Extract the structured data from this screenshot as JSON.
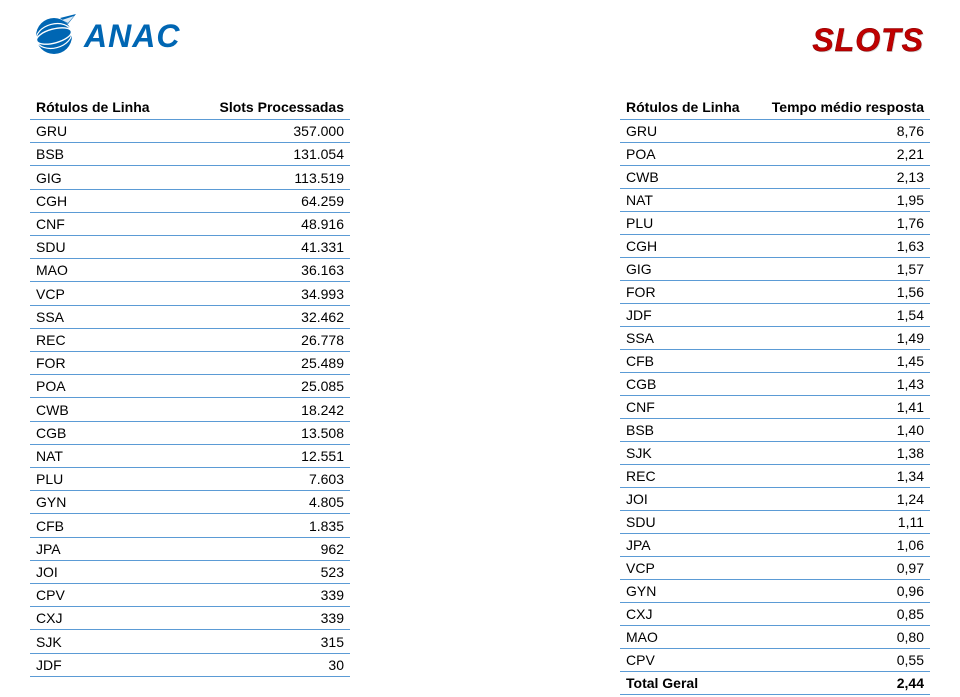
{
  "brand": {
    "name": "ANAC"
  },
  "page_title": "SLOTS",
  "colors": {
    "brand_blue": "#0066b3",
    "title_red": "#c00000",
    "row_border": "#5b9bd5",
    "text": "#000000",
    "background": "#ffffff"
  },
  "typography": {
    "body_family": "Arial",
    "body_size_pt": 10,
    "header_size_pt": 10,
    "title_size_pt": 24,
    "logo_size_pt": 24
  },
  "left_table": {
    "headers": [
      "Rótulos de Linha",
      "Slots Processadas"
    ],
    "col_align": [
      "left",
      "right"
    ],
    "rows": [
      [
        "GRU",
        "357.000"
      ],
      [
        "BSB",
        "131.054"
      ],
      [
        "GIG",
        "113.519"
      ],
      [
        "CGH",
        "64.259"
      ],
      [
        "CNF",
        "48.916"
      ],
      [
        "SDU",
        "41.331"
      ],
      [
        "MAO",
        "36.163"
      ],
      [
        "VCP",
        "34.993"
      ],
      [
        "SSA",
        "32.462"
      ],
      [
        "REC",
        "26.778"
      ],
      [
        "FOR",
        "25.489"
      ],
      [
        "POA",
        "25.085"
      ],
      [
        "CWB",
        "18.242"
      ],
      [
        "CGB",
        "13.508"
      ],
      [
        "NAT",
        "12.551"
      ],
      [
        "PLU",
        "7.603"
      ],
      [
        "GYN",
        "4.805"
      ],
      [
        "CFB",
        "1.835"
      ],
      [
        "JPA",
        "962"
      ],
      [
        "JOI",
        "523"
      ],
      [
        "CPV",
        "339"
      ],
      [
        "CXJ",
        "339"
      ],
      [
        "SJK",
        "315"
      ],
      [
        "JDF",
        "30"
      ]
    ]
  },
  "right_table": {
    "headers": [
      "Rótulos de Linha",
      "Tempo médio resposta"
    ],
    "col_align": [
      "left",
      "right"
    ],
    "rows": [
      [
        "GRU",
        "8,76"
      ],
      [
        "POA",
        "2,21"
      ],
      [
        "CWB",
        "2,13"
      ],
      [
        "NAT",
        "1,95"
      ],
      [
        "PLU",
        "1,76"
      ],
      [
        "CGH",
        "1,63"
      ],
      [
        "GIG",
        "1,57"
      ],
      [
        "FOR",
        "1,56"
      ],
      [
        "JDF",
        "1,54"
      ],
      [
        "SSA",
        "1,49"
      ],
      [
        "CFB",
        "1,45"
      ],
      [
        "CGB",
        "1,43"
      ],
      [
        "CNF",
        "1,41"
      ],
      [
        "BSB",
        "1,40"
      ],
      [
        "SJK",
        "1,38"
      ],
      [
        "REC",
        "1,34"
      ],
      [
        "JOI",
        "1,24"
      ],
      [
        "SDU",
        "1,11"
      ],
      [
        "JPA",
        "1,06"
      ],
      [
        "VCP",
        "0,97"
      ],
      [
        "GYN",
        "0,96"
      ],
      [
        "CXJ",
        "0,85"
      ],
      [
        "MAO",
        "0,80"
      ],
      [
        "CPV",
        "0,55"
      ]
    ],
    "total_row": [
      "Total Geral",
      "2,44"
    ]
  }
}
